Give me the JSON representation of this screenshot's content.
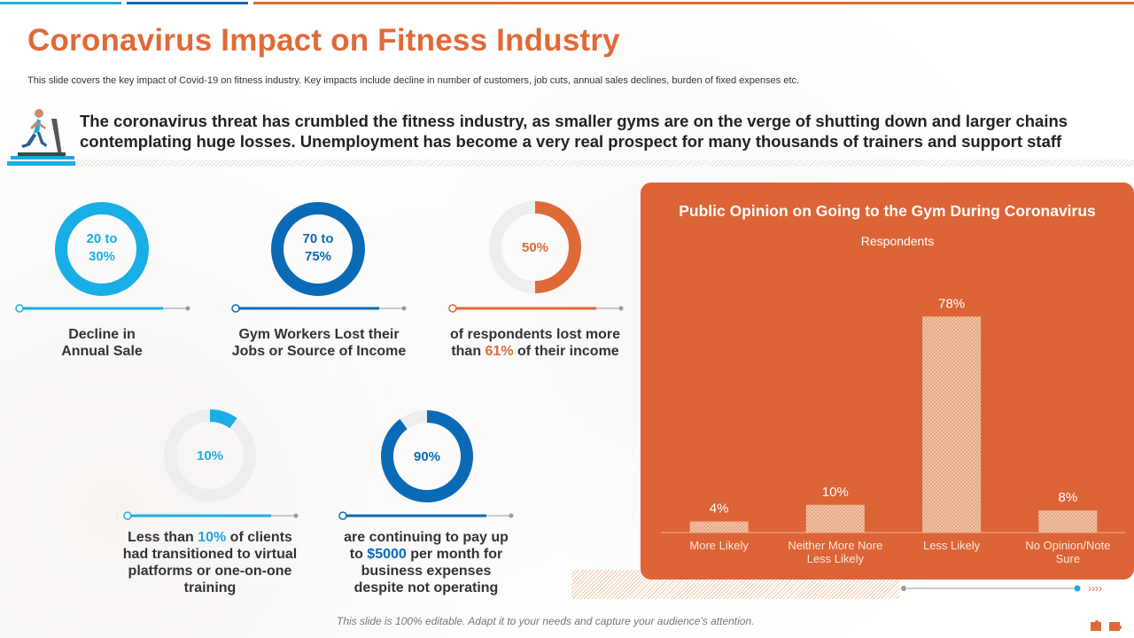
{
  "header": {
    "title": "Coronavirus Impact on Fitness Industry",
    "subtitle": "This slide covers the key impact of Covid-19 on fitness industry. Key impacts include decline in number of customers, job cuts, annual sales declines, burden of fixed expenses etc.",
    "hero": "The coronavirus threat has crumbled the fitness industry, as smaller gyms are on the verge of shutting down and larger chains contemplating huge losses. Unemployment has become a very real prospect for many thousands of trainers and support staff"
  },
  "stats": [
    {
      "value_line1": "20 to",
      "value_line2": "30%",
      "label_line1": "Decline in",
      "label_line2": "Annual Sale",
      "color": "#19aee6",
      "fraction": 1.0
    },
    {
      "value_line1": "70 to",
      "value_line2": "75%",
      "label_line1": "Gym Workers Lost their",
      "label_line2": "Jobs or Source of Income",
      "color": "#0a6ab6",
      "fraction": 1.0
    },
    {
      "value": "50%",
      "label_pre": "of respondents lost more",
      "label_mid_pre": "than ",
      "label_highlight": "61%",
      "label_post": " of their income",
      "color": "#e06a37",
      "fraction": 0.5
    },
    {
      "value": "10%",
      "label_pre": "Less than ",
      "label_highlight": "10%",
      "label_line1_post": " of clients",
      "label_line2": "had transitioned to virtual",
      "label_line3": "platforms or one-on-one",
      "label_line4": "training",
      "color": "#19aee6",
      "fraction": 0.1
    },
    {
      "value": "90%",
      "label_line1": "are continuing to pay up",
      "label_pre": "to ",
      "label_highlight": "$5000",
      "label_line2_post": " per month for",
      "label_line3": "business expenses",
      "label_line4": "despite not operating",
      "color": "#0a6ab6",
      "fraction": 0.9
    }
  ],
  "chart_data": {
    "type": "bar",
    "title": "Public Opinion on Going to the Gym During Coronavirus",
    "series_name": "Respondents",
    "categories": [
      "More Likely",
      "Neither More Nore Less Likely",
      "Less Likely",
      "No Opinion/Note Sure"
    ],
    "category_lines": [
      [
        "More Likely"
      ],
      [
        "Neither More Nore",
        "Less Likely"
      ],
      [
        "Less Likely"
      ],
      [
        "No Opinion/Note",
        "Sure"
      ]
    ],
    "values": [
      4,
      10,
      78,
      8
    ],
    "data_labels": [
      "4%",
      "10%",
      "78%",
      "8%"
    ],
    "ylim": [
      0,
      80
    ],
    "grid": false
  },
  "footer": "This slide is 100% editable. Adapt it to your needs and capture your audience's attention.",
  "colors": {
    "orange": "#e06a37",
    "blue": "#19aee6",
    "dark_blue": "#0a6ab6",
    "grey": "#eeeeee"
  }
}
